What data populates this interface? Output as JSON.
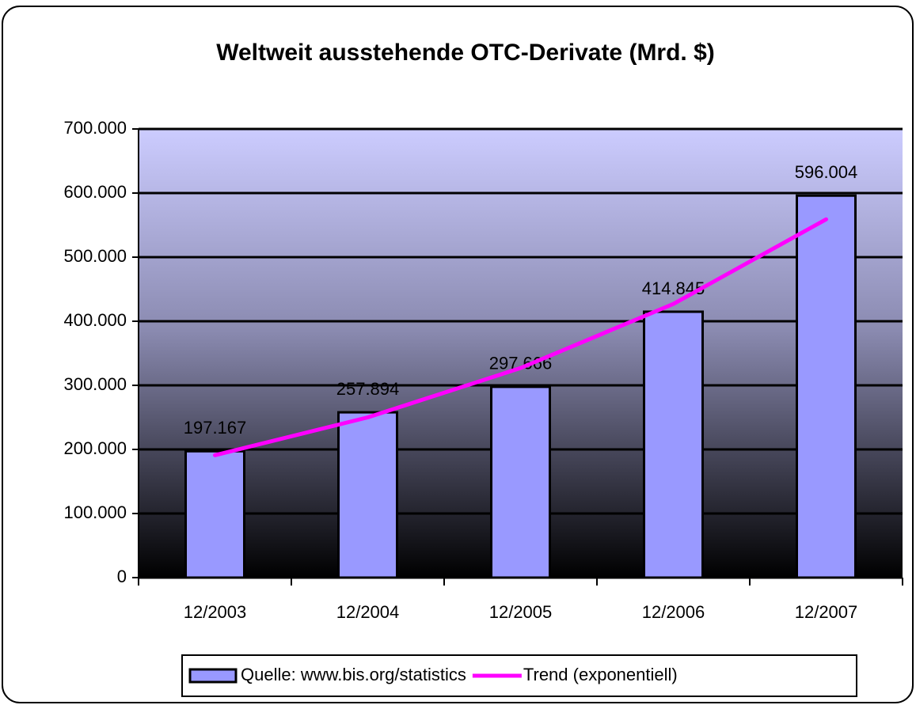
{
  "chart_data": {
    "type": "bar",
    "title": "Weltweit ausstehende OTC-Derivate (Mrd. $)",
    "categories": [
      "12/2003",
      "12/2004",
      "12/2005",
      "12/2006",
      "12/2007"
    ],
    "series": [
      {
        "name": "Quelle: www.bis.org/statistics",
        "type": "bar",
        "color": "#9999ff",
        "values": [
          197167,
          257894,
          297666,
          414845,
          596004
        ],
        "value_labels": [
          "197.167",
          "257.894",
          "297.666",
          "414.845",
          "596.004"
        ]
      },
      {
        "name": "Trend (exponentiell)",
        "type": "line",
        "color": "#ff00ff",
        "values": [
          191000,
          250000,
          327000,
          427000,
          559000
        ]
      }
    ],
    "ylim": [
      0,
      700000
    ],
    "yticks": [
      0,
      {
        "value": 100000,
        "label": "100.000"
      },
      {
        "value": 200000,
        "label": "200.000"
      },
      {
        "value": 300000,
        "label": "300.000"
      },
      {
        "value": 400000,
        "label": "400.000"
      },
      {
        "value": 500000,
        "label": "500.000"
      },
      {
        "value": 600000,
        "label": "600.000"
      },
      {
        "value": 700000,
        "label": "700.000"
      }
    ],
    "grid": true,
    "legend": "bottom"
  }
}
